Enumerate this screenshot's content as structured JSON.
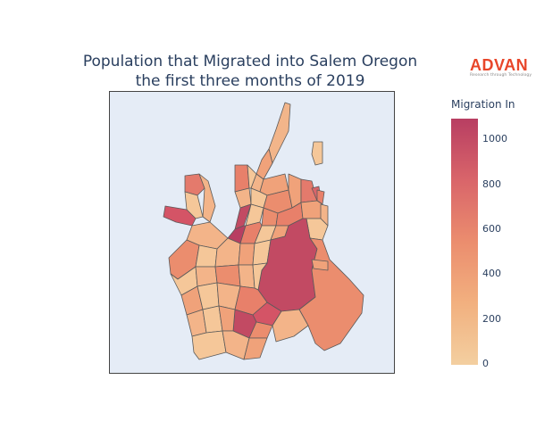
{
  "title_line1": "Population that Migrated into Salem Oregon",
  "title_line2": "the first three months of 2019",
  "logo": {
    "word": "ADVAN",
    "tagline": "Research through Technology"
  },
  "colorbar": {
    "title": "Migration In",
    "ticks": [
      "1000",
      "800",
      "600",
      "400",
      "200",
      "0"
    ],
    "colors": {
      "low": "#f3cfa0",
      "mid": "#eb8d6e",
      "high": "#b83e62"
    }
  },
  "map_style": {
    "background": "#e5ecf6",
    "border": "#555555"
  }
}
